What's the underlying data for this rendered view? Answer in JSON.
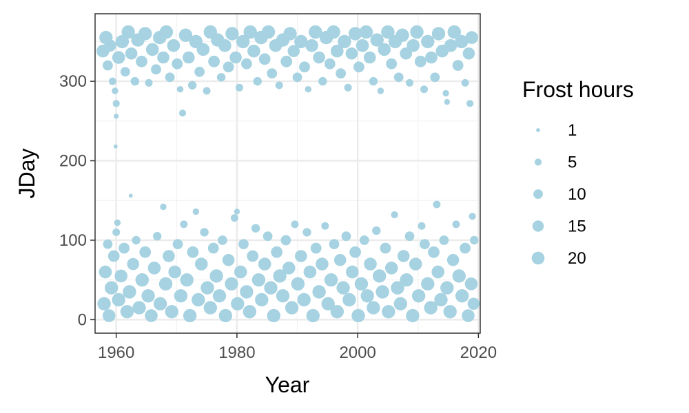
{
  "colors": {
    "point": "#a6d2e1",
    "grid_major": "#ebebeb",
    "grid_minor": "#f3f3f3",
    "panel_border": "#333333",
    "tick_text": "#4d4d4d"
  },
  "chart_data": {
    "type": "scatter",
    "title": "",
    "xlabel": "Year",
    "ylabel": "JDay",
    "xlim": [
      1956.5,
      2020.3
    ],
    "ylim": [
      -17,
      385
    ],
    "x_ticks": [
      1960,
      1980,
      2000,
      2020
    ],
    "x_tick_labels": [
      "1960",
      "1980",
      "2000",
      "2020"
    ],
    "y_ticks": [
      0,
      100,
      200,
      300
    ],
    "y_tick_labels": [
      "0",
      "100",
      "200",
      "300"
    ],
    "legend": {
      "title": "Frost hours",
      "placement": "right",
      "entries": [
        {
          "label": "1",
          "value": 1
        },
        {
          "label": "5",
          "value": 5
        },
        {
          "label": "10",
          "value": 10
        },
        {
          "label": "15",
          "value": 15
        },
        {
          "label": "20",
          "value": 20
        }
      ]
    },
    "points": [
      {
        "x": 1957.8,
        "y": 338,
        "size": 20
      },
      {
        "x": 1958.3,
        "y": 355,
        "size": 22
      },
      {
        "x": 1958.6,
        "y": 320,
        "size": 12
      },
      {
        "x": 1959.0,
        "y": 345,
        "size": 18
      },
      {
        "x": 1959.4,
        "y": 300,
        "size": 6
      },
      {
        "x": 1959.8,
        "y": 288,
        "size": 4
      },
      {
        "x": 1960.0,
        "y": 272,
        "size": 5
      },
      {
        "x": 1960.0,
        "y": 256,
        "size": 2
      },
      {
        "x": 1959.9,
        "y": 218,
        "size": 1
      },
      {
        "x": 1960.4,
        "y": 330,
        "size": 20
      },
      {
        "x": 1961.0,
        "y": 350,
        "size": 22
      },
      {
        "x": 1961.5,
        "y": 312,
        "size": 10
      },
      {
        "x": 1962.0,
        "y": 362,
        "size": 22
      },
      {
        "x": 1962.5,
        "y": 335,
        "size": 18
      },
      {
        "x": 1963.1,
        "y": 300,
        "size": 8
      },
      {
        "x": 1963.6,
        "y": 352,
        "size": 22
      },
      {
        "x": 1964.2,
        "y": 325,
        "size": 16
      },
      {
        "x": 1964.8,
        "y": 360,
        "size": 22
      },
      {
        "x": 1965.4,
        "y": 298,
        "size": 6
      },
      {
        "x": 1966.0,
        "y": 340,
        "size": 20
      },
      {
        "x": 1966.6,
        "y": 315,
        "size": 12
      },
      {
        "x": 1967.2,
        "y": 355,
        "size": 22
      },
      {
        "x": 1967.8,
        "y": 330,
        "size": 18
      },
      {
        "x": 1968.3,
        "y": 362,
        "size": 22
      },
      {
        "x": 1968.9,
        "y": 305,
        "size": 10
      },
      {
        "x": 1969.5,
        "y": 345,
        "size": 20
      },
      {
        "x": 1970.1,
        "y": 322,
        "size": 14
      },
      {
        "x": 1970.6,
        "y": 290,
        "size": 4
      },
      {
        "x": 1971.0,
        "y": 260,
        "size": 5
      },
      {
        "x": 1971.5,
        "y": 358,
        "size": 22
      },
      {
        "x": 1972.0,
        "y": 330,
        "size": 18
      },
      {
        "x": 1972.6,
        "y": 295,
        "size": 8
      },
      {
        "x": 1973.2,
        "y": 350,
        "size": 22
      },
      {
        "x": 1973.8,
        "y": 312,
        "size": 12
      },
      {
        "x": 1974.4,
        "y": 340,
        "size": 20
      },
      {
        "x": 1975.0,
        "y": 288,
        "size": 6
      },
      {
        "x": 1975.6,
        "y": 362,
        "size": 22
      },
      {
        "x": 1976.2,
        "y": 325,
        "size": 16
      },
      {
        "x": 1976.8,
        "y": 352,
        "size": 22
      },
      {
        "x": 1977.4,
        "y": 305,
        "size": 8
      },
      {
        "x": 1978.0,
        "y": 345,
        "size": 20
      },
      {
        "x": 1978.6,
        "y": 318,
        "size": 14
      },
      {
        "x": 1979.2,
        "y": 360,
        "size": 22
      },
      {
        "x": 1979.8,
        "y": 330,
        "size": 18
      },
      {
        "x": 1980.4,
        "y": 292,
        "size": 6
      },
      {
        "x": 1981.0,
        "y": 350,
        "size": 22
      },
      {
        "x": 1981.6,
        "y": 322,
        "size": 14
      },
      {
        "x": 1982.2,
        "y": 362,
        "size": 22
      },
      {
        "x": 1982.8,
        "y": 338,
        "size": 20
      },
      {
        "x": 1983.4,
        "y": 300,
        "size": 8
      },
      {
        "x": 1984.0,
        "y": 355,
        "size": 22
      },
      {
        "x": 1984.6,
        "y": 328,
        "size": 16
      },
      {
        "x": 1985.2,
        "y": 362,
        "size": 22
      },
      {
        "x": 1985.8,
        "y": 310,
        "size": 12
      },
      {
        "x": 1986.4,
        "y": 345,
        "size": 20
      },
      {
        "x": 1987.0,
        "y": 295,
        "size": 6
      },
      {
        "x": 1987.6,
        "y": 352,
        "size": 22
      },
      {
        "x": 1988.2,
        "y": 325,
        "size": 16
      },
      {
        "x": 1988.8,
        "y": 360,
        "size": 22
      },
      {
        "x": 1989.4,
        "y": 338,
        "size": 18
      },
      {
        "x": 1990.0,
        "y": 305,
        "size": 10
      },
      {
        "x": 1990.6,
        "y": 350,
        "size": 22
      },
      {
        "x": 1991.2,
        "y": 318,
        "size": 14
      },
      {
        "x": 1991.8,
        "y": 290,
        "size": 4
      },
      {
        "x": 1992.4,
        "y": 345,
        "size": 20
      },
      {
        "x": 1993.0,
        "y": 362,
        "size": 22
      },
      {
        "x": 1993.6,
        "y": 330,
        "size": 18
      },
      {
        "x": 1994.2,
        "y": 300,
        "size": 8
      },
      {
        "x": 1994.8,
        "y": 355,
        "size": 22
      },
      {
        "x": 1995.4,
        "y": 322,
        "size": 14
      },
      {
        "x": 1996.0,
        "y": 362,
        "size": 22
      },
      {
        "x": 1996.6,
        "y": 338,
        "size": 20
      },
      {
        "x": 1997.2,
        "y": 310,
        "size": 12
      },
      {
        "x": 1997.8,
        "y": 350,
        "size": 22
      },
      {
        "x": 1998.4,
        "y": 292,
        "size": 6
      },
      {
        "x": 1999.0,
        "y": 335,
        "size": 18
      },
      {
        "x": 1999.6,
        "y": 360,
        "size": 22
      },
      {
        "x": 2000.2,
        "y": 318,
        "size": 14
      },
      {
        "x": 2000.8,
        "y": 345,
        "size": 20
      },
      {
        "x": 2001.4,
        "y": 362,
        "size": 22
      },
      {
        "x": 2002.0,
        "y": 330,
        "size": 18
      },
      {
        "x": 2002.6,
        "y": 300,
        "size": 8
      },
      {
        "x": 2003.2,
        "y": 352,
        "size": 22
      },
      {
        "x": 2003.8,
        "y": 288,
        "size": 4
      },
      {
        "x": 2004.4,
        "y": 340,
        "size": 20
      },
      {
        "x": 2005.0,
        "y": 362,
        "size": 22
      },
      {
        "x": 2005.6,
        "y": 322,
        "size": 14
      },
      {
        "x": 2006.2,
        "y": 350,
        "size": 22
      },
      {
        "x": 2006.8,
        "y": 305,
        "size": 10
      },
      {
        "x": 2007.4,
        "y": 358,
        "size": 22
      },
      {
        "x": 2008.0,
        "y": 335,
        "size": 18
      },
      {
        "x": 2008.6,
        "y": 298,
        "size": 6
      },
      {
        "x": 2009.2,
        "y": 345,
        "size": 20
      },
      {
        "x": 2009.8,
        "y": 362,
        "size": 22
      },
      {
        "x": 2010.4,
        "y": 325,
        "size": 16
      },
      {
        "x": 2011.0,
        "y": 290,
        "size": 6
      },
      {
        "x": 2011.6,
        "y": 350,
        "size": 22
      },
      {
        "x": 2012.2,
        "y": 330,
        "size": 18
      },
      {
        "x": 2012.8,
        "y": 305,
        "size": 10
      },
      {
        "x": 2013.4,
        "y": 360,
        "size": 22
      },
      {
        "x": 2014.0,
        "y": 338,
        "size": 20
      },
      {
        "x": 2014.6,
        "y": 285,
        "size": 4
      },
      {
        "x": 2014.8,
        "y": 274,
        "size": 3
      },
      {
        "x": 2015.4,
        "y": 345,
        "size": 20
      },
      {
        "x": 2016.0,
        "y": 362,
        "size": 22
      },
      {
        "x": 2016.6,
        "y": 320,
        "size": 14
      },
      {
        "x": 2017.2,
        "y": 350,
        "size": 22
      },
      {
        "x": 2017.8,
        "y": 298,
        "size": 6
      },
      {
        "x": 2018.4,
        "y": 335,
        "size": 18
      },
      {
        "x": 2018.6,
        "y": 272,
        "size": 5
      },
      {
        "x": 2018.9,
        "y": 355,
        "size": 20
      },
      {
        "x": 1958.0,
        "y": 20,
        "size": 22
      },
      {
        "x": 1958.2,
        "y": 60,
        "size": 20
      },
      {
        "x": 1958.6,
        "y": 95,
        "size": 10
      },
      {
        "x": 1958.8,
        "y": 5,
        "size": 20
      },
      {
        "x": 1959.2,
        "y": 40,
        "size": 22
      },
      {
        "x": 1959.6,
        "y": 80,
        "size": 16
      },
      {
        "x": 1960.0,
        "y": 110,
        "size": 6
      },
      {
        "x": 1960.2,
        "y": 122,
        "size": 4
      },
      {
        "x": 1960.4,
        "y": 25,
        "size": 22
      },
      {
        "x": 1960.8,
        "y": 55,
        "size": 20
      },
      {
        "x": 1961.3,
        "y": 90,
        "size": 14
      },
      {
        "x": 1961.8,
        "y": 10,
        "size": 22
      },
      {
        "x": 1962.2,
        "y": 35,
        "size": 22
      },
      {
        "x": 1962.4,
        "y": 156,
        "size": 1
      },
      {
        "x": 1962.8,
        "y": 70,
        "size": 18
      },
      {
        "x": 1963.3,
        "y": 100,
        "size": 8
      },
      {
        "x": 1963.8,
        "y": 15,
        "size": 22
      },
      {
        "x": 1964.3,
        "y": 50,
        "size": 22
      },
      {
        "x": 1964.8,
        "y": 85,
        "size": 16
      },
      {
        "x": 1965.3,
        "y": 30,
        "size": 22
      },
      {
        "x": 1965.8,
        "y": 5,
        "size": 20
      },
      {
        "x": 1966.3,
        "y": 65,
        "size": 20
      },
      {
        "x": 1966.8,
        "y": 105,
        "size": 8
      },
      {
        "x": 1967.3,
        "y": 20,
        "size": 22
      },
      {
        "x": 1967.8,
        "y": 142,
        "size": 4
      },
      {
        "x": 1968.2,
        "y": 45,
        "size": 22
      },
      {
        "x": 1968.7,
        "y": 80,
        "size": 18
      },
      {
        "x": 1969.2,
        "y": 10,
        "size": 22
      },
      {
        "x": 1969.7,
        "y": 60,
        "size": 20
      },
      {
        "x": 1970.2,
        "y": 95,
        "size": 12
      },
      {
        "x": 1970.7,
        "y": 30,
        "size": 22
      },
      {
        "x": 1971.2,
        "y": 120,
        "size": 6
      },
      {
        "x": 1971.7,
        "y": 50,
        "size": 22
      },
      {
        "x": 1972.2,
        "y": 5,
        "size": 22
      },
      {
        "x": 1972.7,
        "y": 85,
        "size": 16
      },
      {
        "x": 1973.2,
        "y": 136,
        "size": 4
      },
      {
        "x": 1973.6,
        "y": 25,
        "size": 22
      },
      {
        "x": 1974.1,
        "y": 70,
        "size": 20
      },
      {
        "x": 1974.6,
        "y": 110,
        "size": 8
      },
      {
        "x": 1975.1,
        "y": 40,
        "size": 22
      },
      {
        "x": 1975.6,
        "y": 15,
        "size": 22
      },
      {
        "x": 1976.1,
        "y": 90,
        "size": 14
      },
      {
        "x": 1976.6,
        "y": 55,
        "size": 22
      },
      {
        "x": 1977.1,
        "y": 30,
        "size": 22
      },
      {
        "x": 1977.6,
        "y": 100,
        "size": 10
      },
      {
        "x": 1978.1,
        "y": 5,
        "size": 22
      },
      {
        "x": 1978.6,
        "y": 75,
        "size": 18
      },
      {
        "x": 1979.1,
        "y": 45,
        "size": 22
      },
      {
        "x": 1979.6,
        "y": 128,
        "size": 6
      },
      {
        "x": 1980.0,
        "y": 136,
        "size": 3
      },
      {
        "x": 1980.1,
        "y": 20,
        "size": 22
      },
      {
        "x": 1980.6,
        "y": 60,
        "size": 20
      },
      {
        "x": 1981.1,
        "y": 95,
        "size": 12
      },
      {
        "x": 1981.6,
        "y": 35,
        "size": 22
      },
      {
        "x": 1982.1,
        "y": 10,
        "size": 22
      },
      {
        "x": 1982.6,
        "y": 80,
        "size": 16
      },
      {
        "x": 1983.1,
        "y": 115,
        "size": 8
      },
      {
        "x": 1983.6,
        "y": 50,
        "size": 22
      },
      {
        "x": 1984.1,
        "y": 25,
        "size": 22
      },
      {
        "x": 1984.6,
        "y": 70,
        "size": 20
      },
      {
        "x": 1985.1,
        "y": 105,
        "size": 10
      },
      {
        "x": 1985.6,
        "y": 40,
        "size": 22
      },
      {
        "x": 1986.1,
        "y": 5,
        "size": 22
      },
      {
        "x": 1986.6,
        "y": 85,
        "size": 16
      },
      {
        "x": 1987.1,
        "y": 55,
        "size": 22
      },
      {
        "x": 1987.6,
        "y": 30,
        "size": 22
      },
      {
        "x": 1988.1,
        "y": 100,
        "size": 12
      },
      {
        "x": 1988.6,
        "y": 65,
        "size": 20
      },
      {
        "x": 1989.1,
        "y": 15,
        "size": 22
      },
      {
        "x": 1989.6,
        "y": 120,
        "size": 6
      },
      {
        "x": 1990.1,
        "y": 45,
        "size": 22
      },
      {
        "x": 1990.6,
        "y": 80,
        "size": 18
      },
      {
        "x": 1991.1,
        "y": 25,
        "size": 22
      },
      {
        "x": 1991.6,
        "y": 110,
        "size": 8
      },
      {
        "x": 1992.1,
        "y": 60,
        "size": 20
      },
      {
        "x": 1992.6,
        "y": 5,
        "size": 22
      },
      {
        "x": 1993.1,
        "y": 90,
        "size": 14
      },
      {
        "x": 1993.6,
        "y": 35,
        "size": 22
      },
      {
        "x": 1994.1,
        "y": 70,
        "size": 20
      },
      {
        "x": 1994.6,
        "y": 118,
        "size": 6
      },
      {
        "x": 1995.1,
        "y": 20,
        "size": 22
      },
      {
        "x": 1995.6,
        "y": 50,
        "size": 22
      },
      {
        "x": 1996.1,
        "y": 95,
        "size": 12
      },
      {
        "x": 1996.6,
        "y": 10,
        "size": 22
      },
      {
        "x": 1997.1,
        "y": 75,
        "size": 18
      },
      {
        "x": 1997.6,
        "y": 40,
        "size": 22
      },
      {
        "x": 1998.1,
        "y": 105,
        "size": 10
      },
      {
        "x": 1998.6,
        "y": 25,
        "size": 22
      },
      {
        "x": 1999.1,
        "y": 60,
        "size": 20
      },
      {
        "x": 1999.6,
        "y": 85,
        "size": 16
      },
      {
        "x": 2000.1,
        "y": 5,
        "size": 22
      },
      {
        "x": 2000.6,
        "y": 45,
        "size": 22
      },
      {
        "x": 2001.1,
        "y": 100,
        "size": 10
      },
      {
        "x": 2001.6,
        "y": 30,
        "size": 22
      },
      {
        "x": 2002.1,
        "y": 70,
        "size": 20
      },
      {
        "x": 2002.6,
        "y": 15,
        "size": 22
      },
      {
        "x": 2003.1,
        "y": 112,
        "size": 8
      },
      {
        "x": 2003.6,
        "y": 55,
        "size": 22
      },
      {
        "x": 2004.1,
        "y": 35,
        "size": 22
      },
      {
        "x": 2004.6,
        "y": 90,
        "size": 14
      },
      {
        "x": 2005.1,
        "y": 10,
        "size": 22
      },
      {
        "x": 2005.6,
        "y": 65,
        "size": 20
      },
      {
        "x": 2006.1,
        "y": 132,
        "size": 5
      },
      {
        "x": 2006.6,
        "y": 40,
        "size": 22
      },
      {
        "x": 2007.1,
        "y": 20,
        "size": 22
      },
      {
        "x": 2007.6,
        "y": 80,
        "size": 18
      },
      {
        "x": 2008.1,
        "y": 50,
        "size": 22
      },
      {
        "x": 2008.6,
        "y": 105,
        "size": 10
      },
      {
        "x": 2009.1,
        "y": 5,
        "size": 22
      },
      {
        "x": 2009.6,
        "y": 70,
        "size": 20
      },
      {
        "x": 2010.1,
        "y": 30,
        "size": 22
      },
      {
        "x": 2010.6,
        "y": 118,
        "size": 6
      },
      {
        "x": 2011.1,
        "y": 95,
        "size": 12
      },
      {
        "x": 2011.6,
        "y": 45,
        "size": 22
      },
      {
        "x": 2012.1,
        "y": 15,
        "size": 22
      },
      {
        "x": 2012.6,
        "y": 85,
        "size": 16
      },
      {
        "x": 2013.1,
        "y": 145,
        "size": 6
      },
      {
        "x": 2013.3,
        "y": 60,
        "size": 20
      },
      {
        "x": 2013.8,
        "y": 25,
        "size": 22
      },
      {
        "x": 2014.3,
        "y": 100,
        "size": 10
      },
      {
        "x": 2014.8,
        "y": 40,
        "size": 22
      },
      {
        "x": 2015.3,
        "y": 10,
        "size": 22
      },
      {
        "x": 2015.8,
        "y": 75,
        "size": 18
      },
      {
        "x": 2016.3,
        "y": 120,
        "size": 6
      },
      {
        "x": 2016.8,
        "y": 55,
        "size": 22
      },
      {
        "x": 2017.3,
        "y": 30,
        "size": 22
      },
      {
        "x": 2017.8,
        "y": 90,
        "size": 14
      },
      {
        "x": 2018.3,
        "y": 5,
        "size": 20
      },
      {
        "x": 2018.8,
        "y": 45,
        "size": 20
      },
      {
        "x": 2019.0,
        "y": 130,
        "size": 5
      },
      {
        "x": 2019.2,
        "y": 20,
        "size": 18
      },
      {
        "x": 2019.3,
        "y": 100,
        "size": 8
      }
    ]
  }
}
